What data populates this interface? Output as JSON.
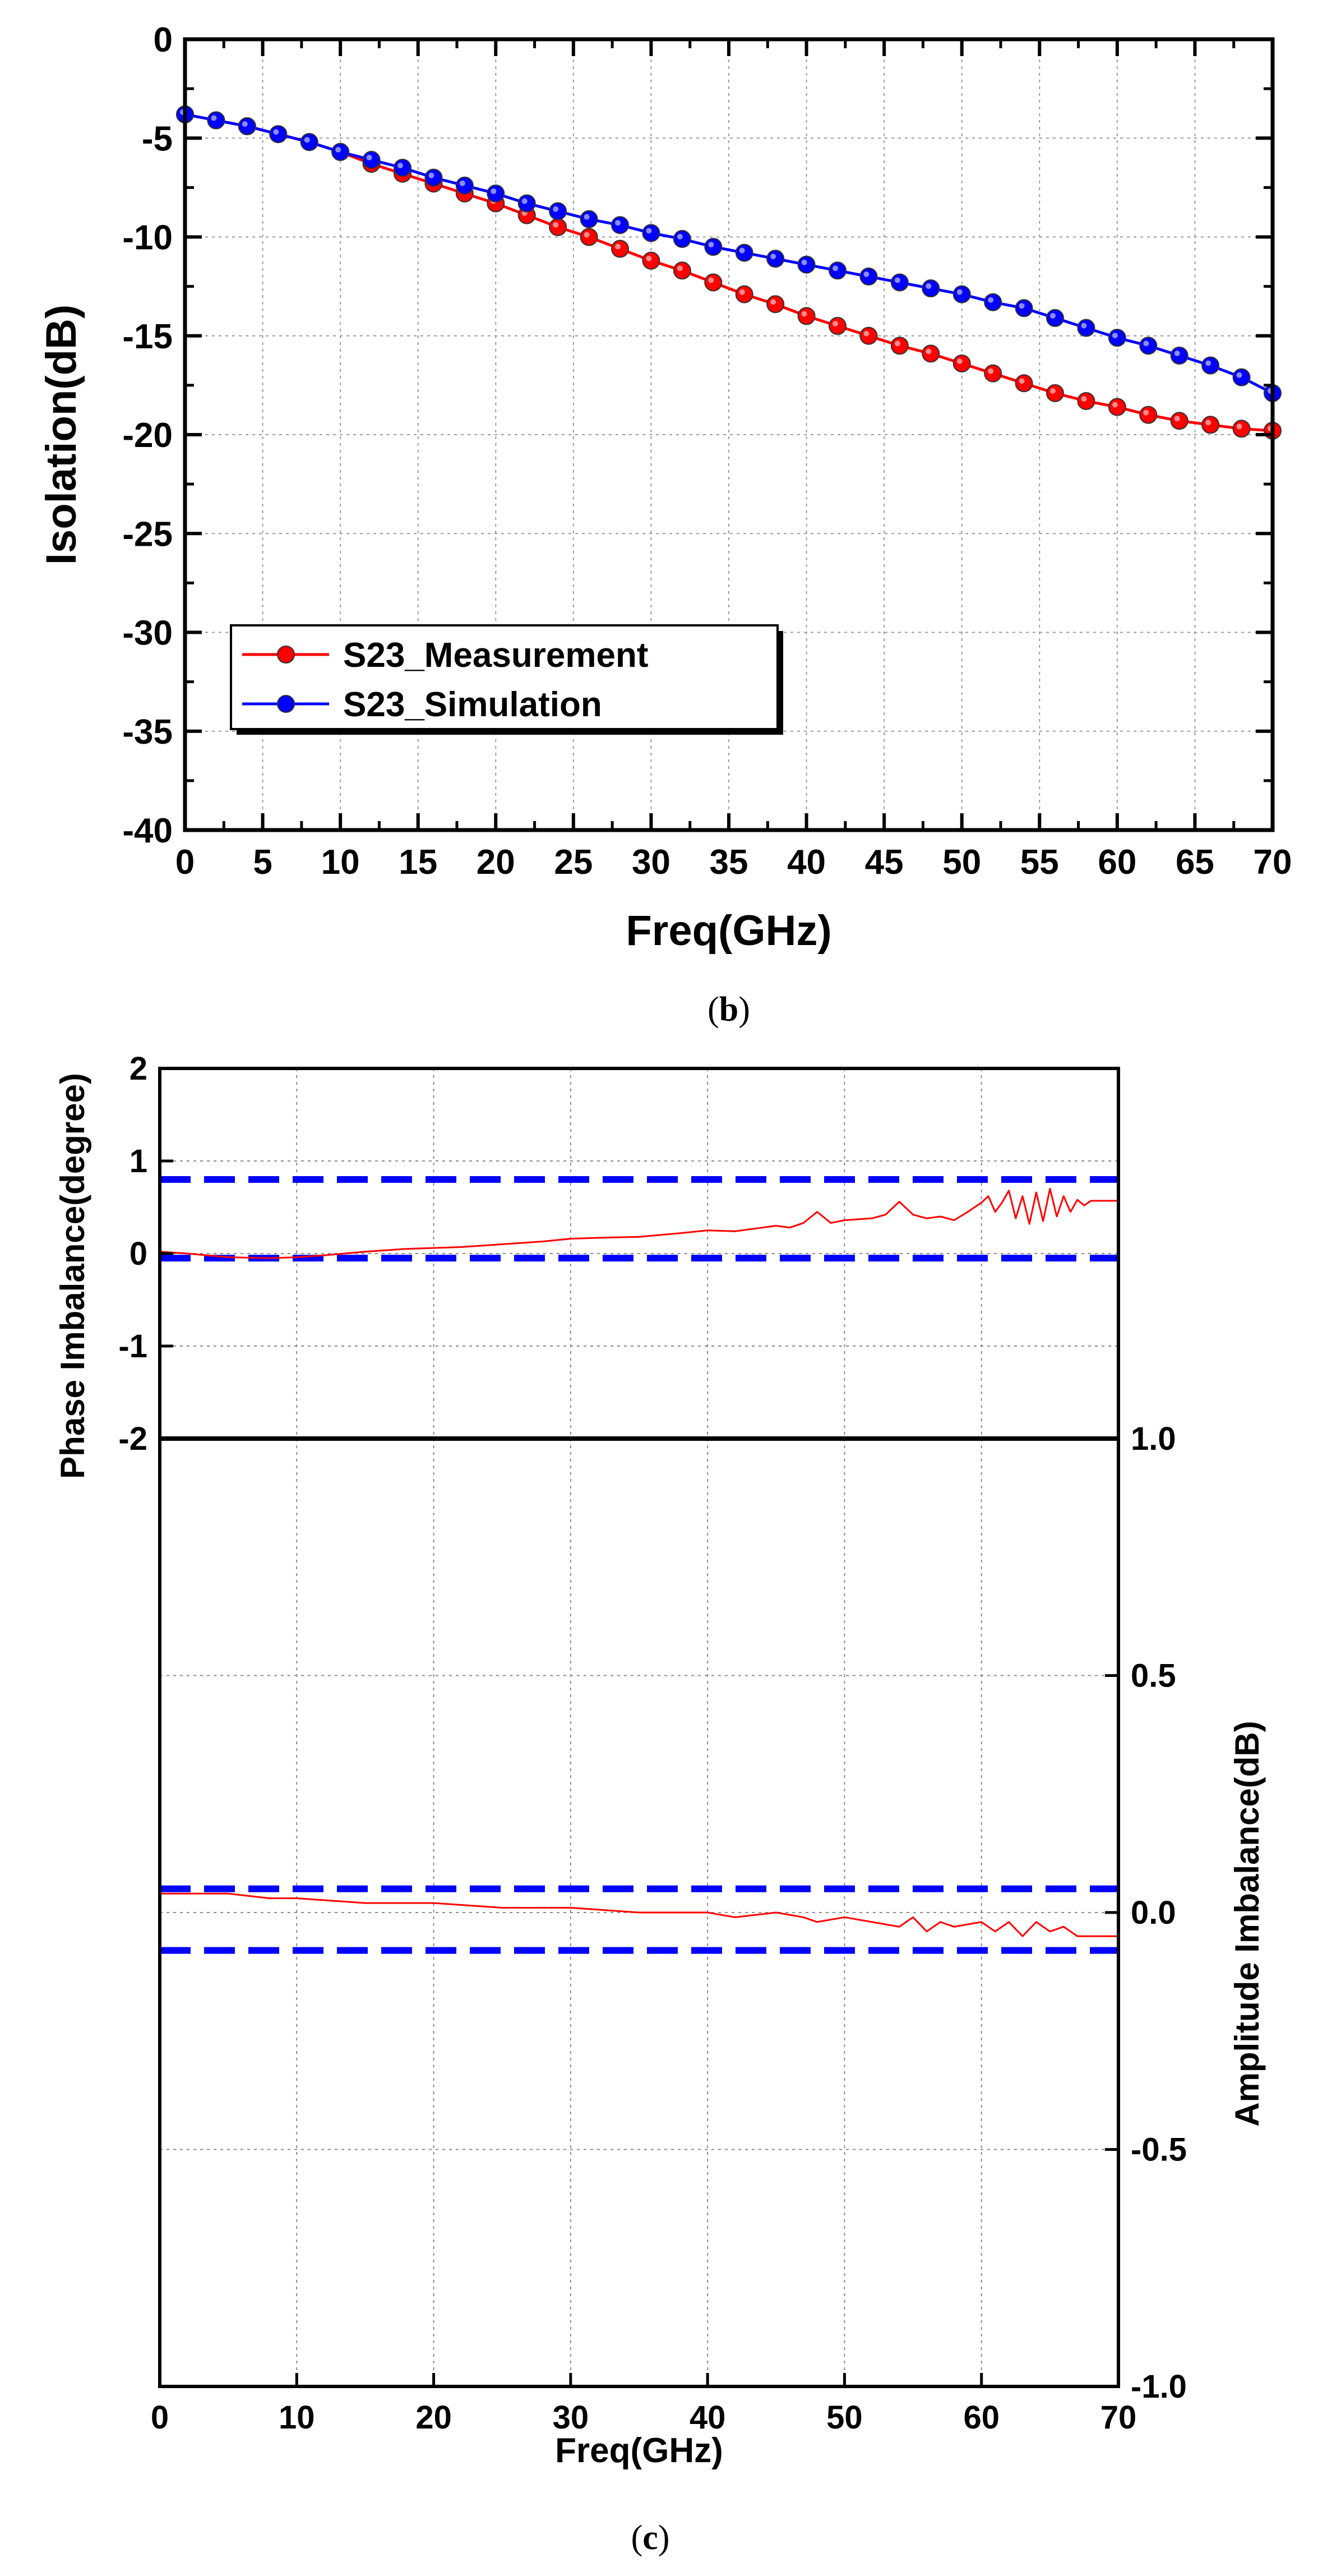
{
  "chart_data": [
    {
      "id": "b",
      "type": "line",
      "caption": "(b)",
      "caption_parts": [
        "(",
        "b",
        ")"
      ],
      "xlabel": "Freq(GHz)",
      "ylabel": "Isolation(dB)",
      "xlim": [
        0,
        70
      ],
      "ylim": [
        -40,
        0
      ],
      "xticks": [
        0,
        5,
        10,
        15,
        20,
        25,
        30,
        35,
        40,
        45,
        50,
        55,
        60,
        65,
        70
      ],
      "yticks": [
        0,
        -5,
        -10,
        -15,
        -20,
        -25,
        -30,
        -35,
        -40
      ],
      "grid": true,
      "legend_position": "lower-left",
      "series": [
        {
          "name": "S23_Measurement",
          "color": "#ff0000",
          "marker": "circle",
          "x": [
            0,
            2,
            4,
            6,
            8,
            10,
            12,
            14,
            16,
            18,
            20,
            22,
            24,
            26,
            28,
            30,
            32,
            34,
            36,
            38,
            40,
            42,
            44,
            46,
            48,
            50,
            52,
            54,
            56,
            58,
            60,
            62,
            64,
            66,
            68,
            70
          ],
          "y": [
            -3.8,
            -4.1,
            -4.4,
            -4.8,
            -5.2,
            -5.7,
            -6.3,
            -6.8,
            -7.3,
            -7.8,
            -8.3,
            -8.9,
            -9.5,
            -10.0,
            -10.6,
            -11.2,
            -11.7,
            -12.3,
            -12.9,
            -13.4,
            -14.0,
            -14.5,
            -15.0,
            -15.5,
            -15.9,
            -16.4,
            -16.9,
            -17.4,
            -17.9,
            -18.3,
            -18.6,
            -19.0,
            -19.3,
            -19.5,
            -19.7,
            -19.8
          ]
        },
        {
          "name": "S23_Simulation",
          "color": "#0000ff",
          "marker": "circle",
          "x": [
            0,
            2,
            4,
            6,
            8,
            10,
            12,
            14,
            16,
            18,
            20,
            22,
            24,
            26,
            28,
            30,
            32,
            34,
            36,
            38,
            40,
            42,
            44,
            46,
            48,
            50,
            52,
            54,
            56,
            58,
            60,
            62,
            64,
            66,
            68,
            70
          ],
          "y": [
            -3.8,
            -4.1,
            -4.4,
            -4.8,
            -5.2,
            -5.7,
            -6.1,
            -6.5,
            -7.0,
            -7.4,
            -7.8,
            -8.3,
            -8.7,
            -9.1,
            -9.4,
            -9.8,
            -10.1,
            -10.5,
            -10.8,
            -11.1,
            -11.4,
            -11.7,
            -12.0,
            -12.3,
            -12.6,
            -12.9,
            -13.3,
            -13.6,
            -14.1,
            -14.6,
            -15.1,
            -15.5,
            -16.0,
            -16.5,
            -17.1,
            -17.9
          ]
        }
      ]
    },
    {
      "id": "c",
      "type": "line",
      "caption": "(c)",
      "caption_parts": [
        "(",
        "c",
        ")"
      ],
      "xlabel": "Freq(GHz)",
      "xlim": [
        0,
        70
      ],
      "xticks": [
        0,
        10,
        20,
        30,
        40,
        50,
        60,
        70
      ],
      "grid": true,
      "panels": [
        {
          "name": "phase",
          "ylabel": "Phase Imbalance(degree)",
          "ylim": [
            -2,
            2
          ],
          "yticks": [
            2,
            1,
            0,
            -1,
            -2
          ],
          "bounds": [
            0.8,
            -0.05
          ],
          "series": [
            {
              "name": "Phase Imbalance",
              "color": "#ff0000",
              "x": [
                0,
                2,
                5,
                8,
                10,
                12,
                15,
                18,
                20,
                22,
                25,
                28,
                30,
                32,
                35,
                38,
                40,
                42,
                44,
                45,
                46,
                47,
                48,
                49,
                50,
                52,
                53,
                54,
                55,
                56,
                57,
                58,
                59,
                60,
                60.5,
                61,
                61.5,
                62,
                62.5,
                63,
                63.5,
                64,
                64.5,
                65,
                65.5,
                66,
                66.5,
                67,
                67.5,
                68,
                70
              ],
              "y": [
                0.02,
                0.0,
                -0.04,
                -0.05,
                -0.04,
                -0.02,
                0.02,
                0.05,
                0.06,
                0.07,
                0.1,
                0.13,
                0.16,
                0.17,
                0.18,
                0.22,
                0.25,
                0.24,
                0.28,
                0.3,
                0.28,
                0.33,
                0.45,
                0.33,
                0.36,
                0.38,
                0.42,
                0.56,
                0.42,
                0.38,
                0.4,
                0.36,
                0.45,
                0.55,
                0.62,
                0.45,
                0.55,
                0.68,
                0.38,
                0.62,
                0.32,
                0.66,
                0.35,
                0.7,
                0.4,
                0.62,
                0.45,
                0.58,
                0.52,
                0.57,
                0.57
              ]
            }
          ]
        },
        {
          "name": "amplitude",
          "ylabel": "Amplitude Imbalance(dB)",
          "ylim": [
            -1.0,
            1.0
          ],
          "yticks": [
            "1.0",
            "0.5",
            "0.0",
            "-0.5",
            "-1.0"
          ],
          "bounds": [
            0.05,
            -0.08
          ],
          "series": [
            {
              "name": "Amplitude Imbalance",
              "color": "#ff0000",
              "x": [
                0,
                2,
                5,
                8,
                10,
                15,
                20,
                25,
                30,
                35,
                40,
                42,
                45,
                47,
                48,
                50,
                52,
                54,
                55,
                56,
                57,
                58,
                60,
                61,
                62,
                63,
                64,
                65,
                66,
                67,
                68,
                70
              ],
              "y": [
                0.04,
                0.04,
                0.04,
                0.03,
                0.03,
                0.02,
                0.02,
                0.01,
                0.01,
                0.0,
                0.0,
                -0.01,
                0.0,
                -0.01,
                -0.02,
                -0.01,
                -0.02,
                -0.03,
                -0.01,
                -0.04,
                -0.02,
                -0.03,
                -0.02,
                -0.04,
                -0.02,
                -0.05,
                -0.02,
                -0.04,
                -0.03,
                -0.05,
                -0.05,
                -0.05
              ]
            }
          ]
        }
      ]
    }
  ]
}
